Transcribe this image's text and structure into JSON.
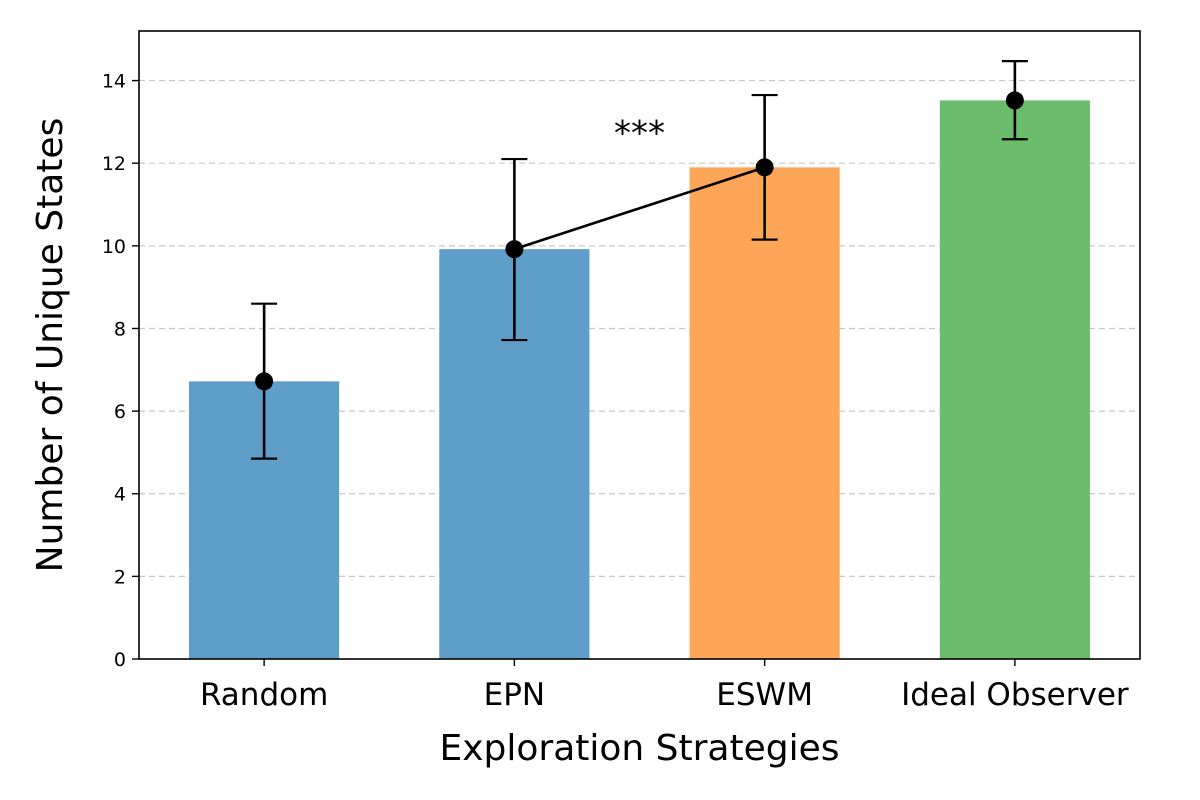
{
  "chart_data": {
    "type": "bar",
    "title": "",
    "xlabel": "Exploration Strategies",
    "ylabel": "Number of Unique States",
    "categories": [
      "Random",
      "EPN",
      "ESWM",
      "Ideal Observer"
    ],
    "values": [
      6.72,
      9.92,
      11.9,
      13.52
    ],
    "error_low": [
      4.85,
      7.72,
      10.15,
      12.58
    ],
    "error_high": [
      8.6,
      12.1,
      13.65,
      14.47
    ],
    "bar_colors": [
      "#5f9ec9",
      "#5f9ec9",
      "#fea658",
      "#6bbd6b"
    ],
    "ylim": [
      0,
      15.2
    ],
    "yticks": [
      0,
      2,
      4,
      6,
      8,
      10,
      12,
      14
    ],
    "grid": "y-dashed",
    "connector": {
      "from": "EPN",
      "to": "ESWM"
    },
    "annotation": {
      "text": "***",
      "x_between": [
        "EPN",
        "ESWM"
      ],
      "y": 12.6
    }
  }
}
